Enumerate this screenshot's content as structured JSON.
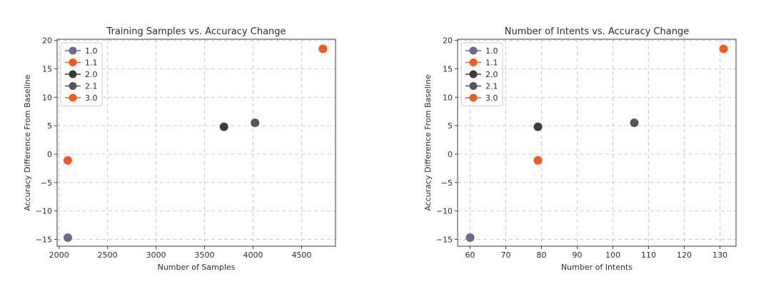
{
  "colors": {
    "v1_0": "#6b6a8e",
    "v1_1": "#f25a22",
    "v2_0": "#3c3c3c",
    "v2_1": "#555555",
    "v3_0": "#f25a22",
    "grid": "#c8c6f0",
    "axes": "#3a3a55"
  },
  "chart_data": [
    {
      "type": "scatter",
      "title": "Training Samples vs. Accuracy Change",
      "xlabel": "Number of Samples",
      "ylabel": "Accuracy Difference From Baseline",
      "xlim": [
        1980,
        4850
      ],
      "ylim": [
        -16.2,
        20.2
      ],
      "xticks": [
        2000,
        2500,
        3000,
        3500,
        4000,
        4500
      ],
      "yticks": [
        -15,
        -10,
        -5,
        0,
        5,
        10,
        15,
        20
      ],
      "xtick_labels": [
        "2000",
        "2500",
        "3000",
        "3500",
        "4000",
        "4500"
      ],
      "ytick_labels": [
        "−15",
        "−10",
        "−5",
        "0",
        "5",
        "10",
        "15",
        "20"
      ],
      "grid": true,
      "legend_position": "top-left",
      "series": [
        {
          "name": "1.0",
          "color_key": "v1_0",
          "x": [
            2090
          ],
          "y": [
            -14.7
          ]
        },
        {
          "name": "1.1",
          "color_key": "v1_1",
          "x": [
            2090
          ],
          "y": [
            -1.1
          ]
        },
        {
          "name": "2.0",
          "color_key": "v2_0",
          "x": [
            3700
          ],
          "y": [
            4.8
          ]
        },
        {
          "name": "2.1",
          "color_key": "v2_1",
          "x": [
            4020
          ],
          "y": [
            5.5
          ]
        },
        {
          "name": "3.0",
          "color_key": "v3_0",
          "x": [
            4720
          ],
          "y": [
            18.5
          ]
        }
      ]
    },
    {
      "type": "scatter",
      "title": "Number of Intents vs. Accuracy Change",
      "xlabel": "Number of Intents",
      "ylabel": "Accuracy Difference From Baseline",
      "xlim": [
        56.5,
        134.5
      ],
      "ylim": [
        -16.2,
        20.2
      ],
      "xticks": [
        60,
        70,
        80,
        90,
        100,
        110,
        120,
        130
      ],
      "yticks": [
        -15,
        -10,
        -5,
        0,
        5,
        10,
        15,
        20
      ],
      "xtick_labels": [
        "60",
        "70",
        "80",
        "90",
        "100",
        "110",
        "120",
        "130"
      ],
      "ytick_labels": [
        "−15",
        "−10",
        "−5",
        "0",
        "5",
        "10",
        "15",
        "20"
      ],
      "grid": true,
      "legend_position": "top-left",
      "series": [
        {
          "name": "1.0",
          "color_key": "v1_0",
          "x": [
            60
          ],
          "y": [
            -14.7
          ]
        },
        {
          "name": "1.1",
          "color_key": "v1_1",
          "x": [
            79
          ],
          "y": [
            -1.1
          ]
        },
        {
          "name": "2.0",
          "color_key": "v2_0",
          "x": [
            79
          ],
          "y": [
            4.8
          ]
        },
        {
          "name": "2.1",
          "color_key": "v2_1",
          "x": [
            106
          ],
          "y": [
            5.5
          ]
        },
        {
          "name": "3.0",
          "color_key": "v3_0",
          "x": [
            131
          ],
          "y": [
            18.5
          ]
        }
      ]
    }
  ]
}
